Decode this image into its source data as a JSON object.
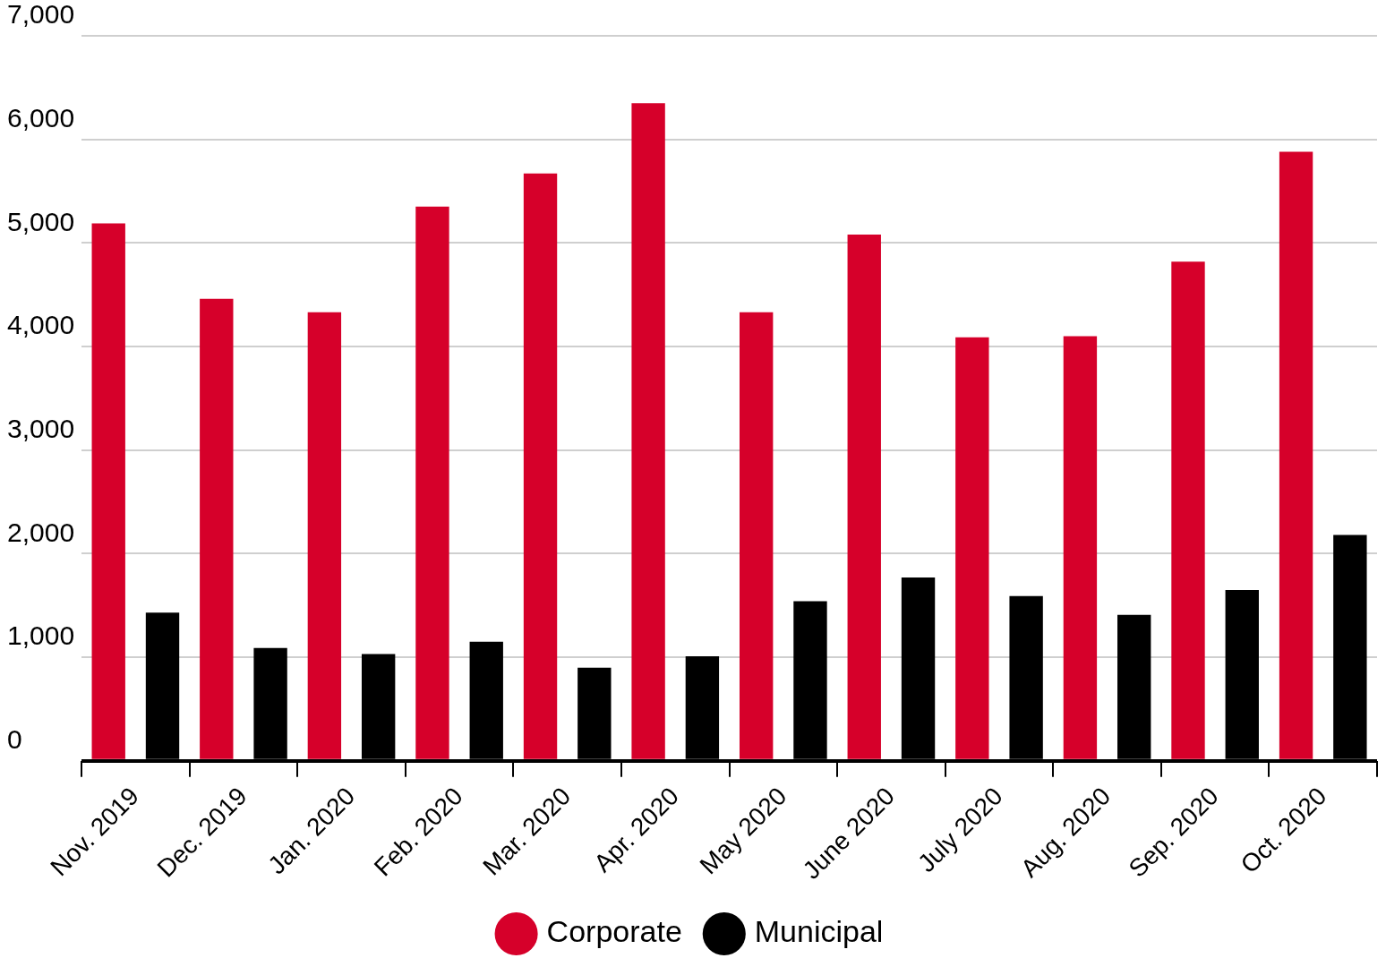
{
  "chart_data": {
    "type": "bar",
    "categories": [
      "Nov. 2019",
      "Dec. 2019",
      "Jan. 2020",
      "Feb. 2020",
      "Mar. 2020",
      "Apr. 2020",
      "May 2020",
      "June 2020",
      "July 2020",
      "Aug. 2020",
      "Sep. 2020",
      "Oct. 2020"
    ],
    "series": [
      {
        "name": "Corporate",
        "color": "#d6002a",
        "values": [
          5190,
          4460,
          4330,
          5350,
          5670,
          6350,
          4330,
          5080,
          4090,
          4100,
          4820,
          5880
        ]
      },
      {
        "name": "Municipal",
        "color": "#000000",
        "values": [
          1430,
          1090,
          1030,
          1150,
          900,
          1010,
          1540,
          1770,
          1590,
          1410,
          1650,
          2180
        ]
      }
    ],
    "ylim": [
      0,
      7000
    ],
    "yticks": [
      0,
      {
        "value": 1000,
        "label": "1,000"
      },
      {
        "value": 2000,
        "label": "2,000"
      },
      {
        "value": 3000,
        "label": "3,000"
      },
      {
        "value": 4000,
        "label": "4,000"
      },
      {
        "value": 5000,
        "label": "5,000"
      },
      {
        "value": 6000,
        "label": "6,000"
      },
      {
        "value": 7000,
        "label": "7,000"
      }
    ],
    "grid": "y",
    "legend": "bottom"
  }
}
